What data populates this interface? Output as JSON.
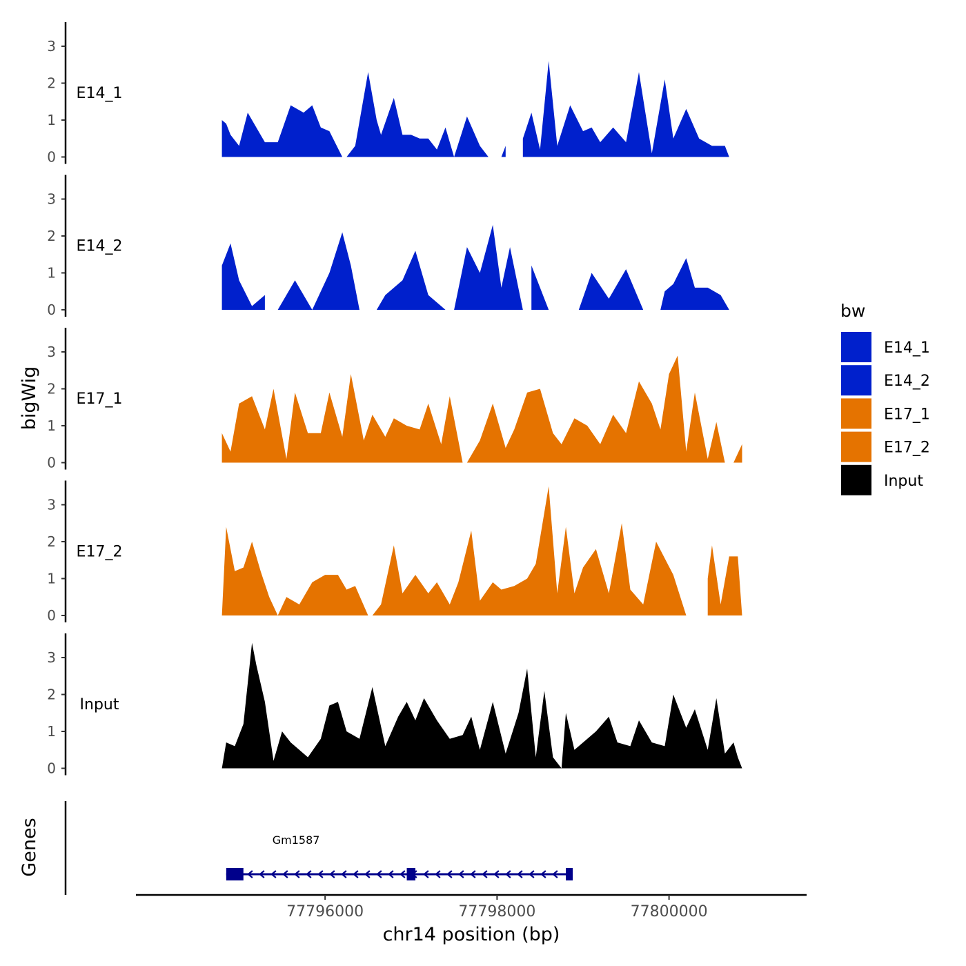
{
  "chart_data": {
    "type": "area",
    "title": "",
    "ylabel": "bigWig",
    "genes_label": "Genes",
    "xlabel": "chr14 position (bp)",
    "xlim": [
      77793800,
      77801600
    ],
    "x_ticks": [
      77796000,
      77798000,
      77800000
    ],
    "x_tick_labels": [
      "77796000",
      "77798000",
      "77800000"
    ],
    "ylim": [
      0,
      3.7
    ],
    "y_ticks": [
      0,
      1,
      2,
      3
    ],
    "y_tick_labels": [
      "0",
      "1",
      "2",
      "3"
    ],
    "legend": {
      "title": "bw",
      "position": "right",
      "entries": [
        {
          "name": "E14_1",
          "color": "#0020cc"
        },
        {
          "name": "E14_2",
          "color": "#0020cc"
        },
        {
          "name": "E17_1",
          "color": "#e57300"
        },
        {
          "name": "E17_2",
          "color": "#e57300"
        },
        {
          "name": "Input",
          "color": "#000000"
        }
      ]
    },
    "series": [
      {
        "name": "E14_1",
        "label": "E14_1",
        "color": "#0020cc",
        "x": [
          77794800,
          77794850,
          77794900,
          77795000,
          77795100,
          77795300,
          77795450,
          77795600,
          77795750,
          77795850,
          77795950,
          77796050,
          77796200,
          77796250,
          77796350,
          77796500,
          77796600,
          77796650,
          77796800,
          77796900,
          77797000,
          77797100,
          77797200,
          77797300,
          77797400,
          77797500,
          77797650,
          77797800,
          77797900,
          77798050,
          77798100,
          77798150,
          77798250,
          77798300,
          77798400,
          77798500,
          77798600,
          77798700,
          77798850,
          77799000,
          77799100,
          77799200,
          77799350,
          77799500,
          77799650,
          77799800,
          77799950,
          77800050,
          77800200,
          77800350,
          77800500,
          77800650,
          77800700
        ],
        "values": [
          1.0,
          0.9,
          0.6,
          0.3,
          1.2,
          0.4,
          0.4,
          1.4,
          1.2,
          1.4,
          0.8,
          0.7,
          0.0,
          0.0,
          0.3,
          2.3,
          1.0,
          0.6,
          1.6,
          0.6,
          0.6,
          0.5,
          0.5,
          0.2,
          0.8,
          0.0,
          1.1,
          0.3,
          0.0,
          0.0,
          0.3,
          0.0,
          0.0,
          0.5,
          1.2,
          0.2,
          2.6,
          0.3,
          1.4,
          0.7,
          0.8,
          0.4,
          0.8,
          0.4,
          2.3,
          0.1,
          2.1,
          0.5,
          1.3,
          0.5,
          0.3,
          0.3,
          0.0
        ],
        "gaps": [
          [
            77796200,
            77796250
          ],
          [
            77798100,
            77798150
          ],
          [
            77798250,
            77798300
          ]
        ]
      },
      {
        "name": "E14_2",
        "label": "E14_2",
        "color": "#0020cc",
        "x": [
          77794800,
          77794900,
          77795000,
          77795150,
          77795300,
          77795450,
          77795650,
          77795850,
          77796050,
          77796200,
          77796300,
          77796400,
          77796600,
          77796700,
          77796900,
          77797050,
          77797200,
          77797400,
          77797500,
          77797650,
          77797800,
          77797950,
          77798050,
          77798150,
          77798300,
          77798400,
          77798600,
          77798750,
          77798950,
          77799100,
          77799300,
          77799500,
          77799700,
          77799850,
          77799900,
          77799950,
          77800050,
          77800200,
          77800300,
          77800450,
          77800600,
          77800700
        ],
        "values": [
          1.2,
          1.8,
          0.8,
          0.1,
          0.4,
          0.0,
          0.8,
          0.0,
          1.0,
          2.1,
          1.2,
          0.0,
          0.0,
          0.4,
          0.8,
          1.6,
          0.4,
          0.0,
          0.0,
          1.7,
          1.0,
          2.3,
          0.6,
          1.7,
          0.0,
          1.2,
          0.0,
          0.0,
          0.0,
          1.0,
          0.3,
          1.1,
          0.0,
          0.0,
          0.0,
          0.5,
          0.7,
          1.4,
          0.6,
          0.6,
          0.4,
          0.0
        ],
        "gaps": [
          [
            77795300,
            77795450
          ],
          [
            77796400,
            77796600
          ],
          [
            77797200,
            77797500
          ],
          [
            77798300,
            77798400
          ],
          [
            77798750,
            77798950
          ],
          [
            77799700,
            77799900
          ]
        ]
      },
      {
        "name": "E17_1",
        "label": "E17_1",
        "color": "#e57300",
        "x": [
          77794800,
          77794900,
          77795000,
          77795150,
          77795300,
          77795400,
          77795550,
          77795650,
          77795800,
          77795950,
          77796050,
          77796200,
          77796300,
          77796450,
          77796550,
          77796700,
          77796800,
          77796950,
          77797100,
          77797200,
          77797350,
          77797450,
          77797600,
          77797650,
          77797800,
          77797950,
          77798100,
          77798200,
          77798350,
          77798500,
          77798650,
          77798750,
          77798900,
          77799050,
          77799200,
          77799350,
          77799500,
          77799650,
          77799800,
          77799900,
          77800000,
          77800100,
          77800200,
          77800300,
          77800450,
          77800550,
          77800650,
          77800750,
          77800850
        ],
        "values": [
          0.8,
          0.3,
          1.6,
          1.8,
          0.9,
          2.0,
          0.1,
          1.9,
          0.8,
          0.8,
          1.9,
          0.7,
          2.4,
          0.6,
          1.3,
          0.7,
          1.2,
          1.0,
          0.9,
          1.6,
          0.5,
          1.8,
          0.0,
          0.0,
          0.6,
          1.6,
          0.4,
          0.9,
          1.9,
          2.0,
          0.8,
          0.5,
          1.2,
          1.0,
          0.5,
          1.3,
          0.8,
          2.2,
          1.6,
          0.9,
          2.4,
          2.9,
          0.3,
          1.9,
          0.1,
          1.1,
          0.0,
          0.0,
          0.5
        ],
        "gaps": [
          [
            77797600,
            77797650
          ],
          [
            77800650,
            77800750
          ]
        ]
      },
      {
        "name": "E17_2",
        "label": "E17_2",
        "color": "#e57300",
        "x": [
          77794800,
          77794850,
          77794950,
          77795050,
          77795150,
          77795250,
          77795350,
          77795450,
          77795550,
          77795700,
          77795850,
          77796000,
          77796150,
          77796250,
          77796350,
          77796500,
          77796550,
          77796650,
          77796800,
          77796900,
          77797050,
          77797200,
          77797300,
          77797450,
          77797550,
          77797700,
          77797800,
          77797950,
          77798050,
          77798200,
          77798350,
          77798450,
          77798600,
          77798700,
          77798800,
          77798900,
          77799000,
          77799150,
          77799300,
          77799450,
          77799550,
          77799700,
          77799850,
          77800050,
          77800200,
          77800350,
          77800450,
          77800500,
          77800600,
          77800700,
          77800800,
          77800850
        ],
        "values": [
          0.0,
          2.4,
          1.2,
          1.3,
          2.0,
          1.2,
          0.5,
          0.0,
          0.5,
          0.3,
          0.9,
          1.1,
          1.1,
          0.7,
          0.8,
          0.0,
          0.0,
          0.3,
          1.9,
          0.6,
          1.1,
          0.6,
          0.9,
          0.3,
          0.9,
          2.3,
          0.4,
          0.9,
          0.7,
          0.8,
          1.0,
          1.4,
          3.5,
          0.6,
          2.4,
          0.6,
          1.3,
          1.8,
          0.6,
          2.5,
          0.7,
          0.3,
          2.0,
          1.1,
          0.0,
          0.0,
          1.0,
          1.9,
          0.3,
          1.6,
          1.6,
          0.0
        ],
        "gaps": [
          [
            77796500,
            77796550
          ],
          [
            77800350,
            77800450
          ]
        ]
      },
      {
        "name": "Input",
        "label": "Input",
        "color": "#000000",
        "x": [
          77794800,
          77794850,
          77794950,
          77795050,
          77795150,
          77795200,
          77795300,
          77795400,
          77795500,
          77795600,
          77795700,
          77795800,
          77795950,
          77796050,
          77796150,
          77796250,
          77796400,
          77796550,
          77796700,
          77796850,
          77796950,
          77797050,
          77797150,
          77797300,
          77797450,
          77797600,
          77797700,
          77797800,
          77797950,
          77798100,
          77798250,
          77798350,
          77798450,
          77798550,
          77798650,
          77798750,
          77798800,
          77798900,
          77799050,
          77799150,
          77799300,
          77799400,
          77799550,
          77799650,
          77799800,
          77799950,
          77800050,
          77800200,
          77800300,
          77800450,
          77800550,
          77800650,
          77800750,
          77800800,
          77800850
        ],
        "values": [
          0.0,
          0.7,
          0.6,
          1.2,
          3.4,
          2.8,
          1.8,
          0.2,
          1.0,
          0.7,
          0.5,
          0.3,
          0.8,
          1.7,
          1.8,
          1.0,
          0.8,
          2.2,
          0.6,
          1.4,
          1.8,
          1.3,
          1.9,
          1.3,
          0.8,
          0.9,
          1.4,
          0.5,
          1.8,
          0.4,
          1.5,
          2.7,
          0.3,
          2.1,
          0.3,
          0.0,
          1.5,
          0.5,
          0.8,
          1.0,
          1.4,
          0.7,
          0.6,
          1.3,
          0.7,
          0.6,
          2.0,
          1.1,
          1.6,
          0.5,
          1.9,
          0.4,
          0.7,
          0.3,
          0.0
        ],
        "gaps": []
      }
    ],
    "genes": [
      {
        "name": "Gm1587",
        "strand": "-",
        "start": 77794850,
        "end": 77798850,
        "exons": [
          [
            77794850,
            77795050
          ],
          [
            77796950,
            77797050
          ],
          [
            77798800,
            77798850
          ]
        ]
      }
    ]
  }
}
